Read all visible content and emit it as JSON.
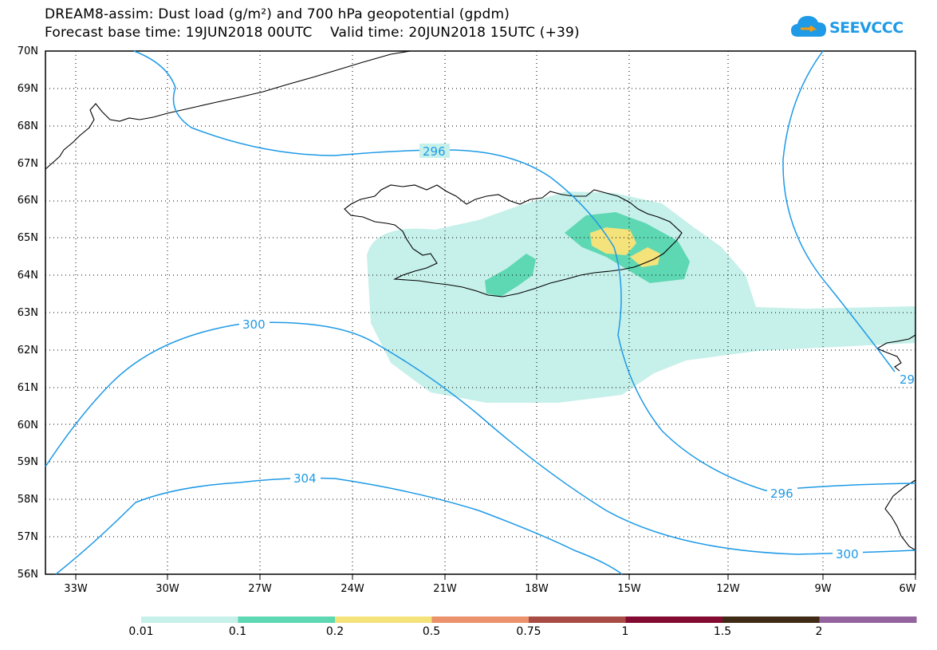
{
  "header": {
    "title_line1": "DREAM8-assim: Dust load (g/m²) and 700 hPa geopotential (gpdm)",
    "title_line2": "Forecast base time: 19JUN2018 00UTC    Valid time: 20JUN2018 15UTC (+39)"
  },
  "logo": {
    "text": "SEEVCCC",
    "color": "#1e9ae6"
  },
  "map": {
    "lat_labels": [
      "70N",
      "69N",
      "68N",
      "67N",
      "66N",
      "65N",
      "64N",
      "63N",
      "62N",
      "61N",
      "60N",
      "59N",
      "58N",
      "57N",
      "56N"
    ],
    "lon_labels": [
      "33W",
      "30W",
      "27W",
      "24W",
      "21W",
      "18W",
      "15W",
      "12W",
      "9W",
      "6W"
    ],
    "contour_color": "#1e9ae6",
    "contour_labels": [
      "296",
      "300",
      "304",
      "296",
      "300",
      "29"
    ]
  },
  "colorbar": {
    "labels": [
      "0.01",
      "0.1",
      "0.2",
      "0.5",
      "0.75",
      "1",
      "1.5",
      "2"
    ],
    "colors": [
      "#c6f0ea",
      "#5ed7b3",
      "#f4e27a",
      "#eb916b",
      "#a84c45",
      "#830a31",
      "#3f2a15",
      "#93649e"
    ]
  }
}
